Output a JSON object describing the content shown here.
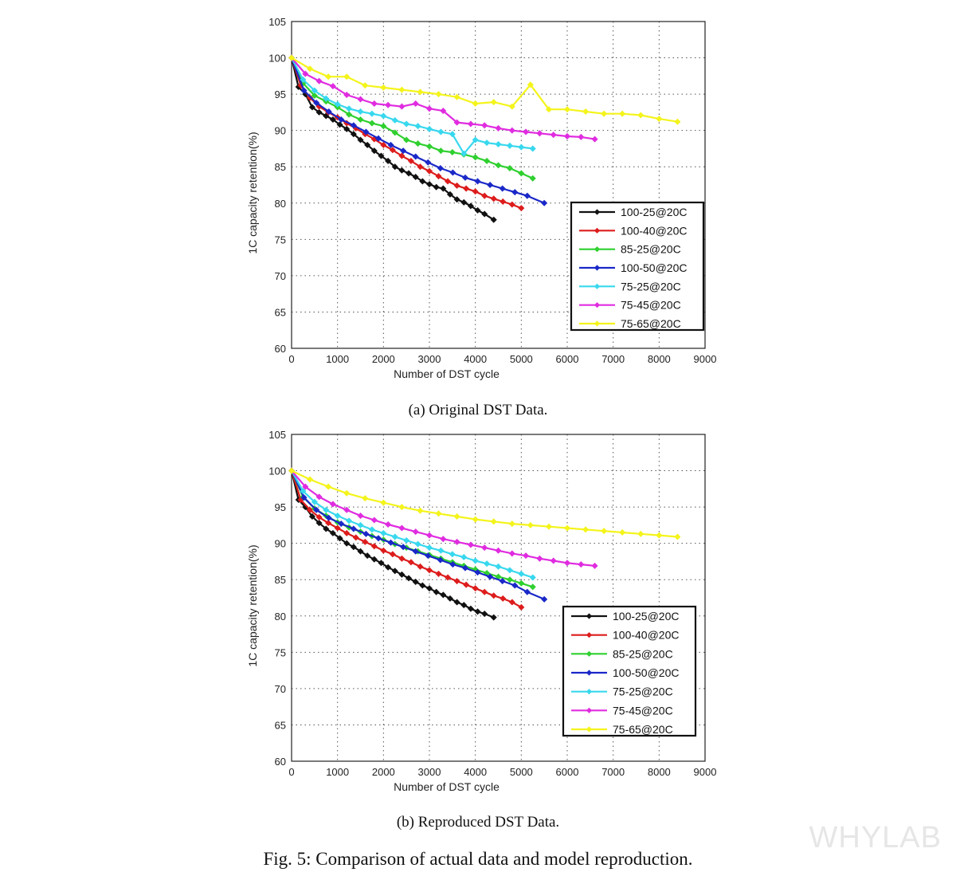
{
  "figure_caption": "Fig. 5: Comparison of actual data and model reproduction.",
  "watermark": "WHYLAB",
  "legend_labels": [
    "100-25@20C",
    "100-40@20C",
    "85-25@20C",
    "100-50@20C",
    "75-25@20C",
    "75-45@20C",
    "75-65@20C"
  ],
  "series_colors": [
    "#111111",
    "#dd1c1c",
    "#2fd02f",
    "#1a28c8",
    "#38d8ee",
    "#e02ce0",
    "#f4f41c"
  ],
  "chart_data": [
    {
      "type": "line",
      "caption": "(a) Original DST Data.",
      "xlabel": "Number of DST cycle",
      "ylabel": "1C capacity retention(%)",
      "xlim": [
        0,
        9000
      ],
      "ylim": [
        60,
        105
      ],
      "xticks": [
        "0",
        "1000",
        "2000",
        "3000",
        "4000",
        "5000",
        "6000",
        "7000",
        "8000",
        "9000"
      ],
      "yticks": [
        "60",
        "65",
        "70",
        "75",
        "80",
        "85",
        "90",
        "95",
        "100",
        "105"
      ],
      "grid": true,
      "legend_position": "lower-right",
      "series": [
        {
          "name": "100-25@20C",
          "x": [
            0,
            150,
            300,
            450,
            600,
            750,
            900,
            1050,
            1200,
            1350,
            1500,
            1650,
            1800,
            1950,
            2100,
            2250,
            2400,
            2550,
            2700,
            2850,
            3000,
            3150,
            3300,
            3450,
            3600,
            3750,
            3900,
            4050,
            4200,
            4400
          ],
          "y": [
            100,
            96,
            95,
            93.2,
            92.5,
            92,
            91.5,
            90.8,
            90.2,
            89.5,
            88.7,
            88,
            87.2,
            86.5,
            85.8,
            85,
            84.5,
            84.1,
            83.6,
            83,
            82.6,
            82.2,
            82,
            81.2,
            80.5,
            80.1,
            79.6,
            79,
            78.5,
            77.7
          ]
        },
        {
          "name": "100-40@20C",
          "x": [
            0,
            200,
            400,
            600,
            800,
            1000,
            1200,
            1400,
            1600,
            1800,
            2000,
            2200,
            2400,
            2600,
            2800,
            3000,
            3200,
            3400,
            3600,
            3800,
            4000,
            4200,
            4400,
            4600,
            4800,
            5000
          ],
          "y": [
            100,
            96.2,
            94.5,
            93.3,
            92.5,
            91.8,
            91,
            90.3,
            89.5,
            88.8,
            88,
            87.3,
            86.5,
            85.8,
            85,
            84.4,
            83.7,
            83,
            82.4,
            82,
            81.6,
            81,
            80.6,
            80.2,
            79.8,
            79.3
          ]
        },
        {
          "name": "85-25@20C",
          "x": [
            0,
            250,
            500,
            750,
            1000,
            1250,
            1500,
            1750,
            2000,
            2250,
            2500,
            2750,
            3000,
            3250,
            3500,
            3750,
            4000,
            4250,
            4500,
            4750,
            5000,
            5250
          ],
          "y": [
            100,
            96.5,
            94.8,
            94,
            93.2,
            92.2,
            91.5,
            91,
            90.6,
            89.7,
            88.7,
            88.2,
            87.8,
            87.2,
            87,
            86.7,
            86.3,
            85.8,
            85.2,
            84.8,
            84.1,
            83.4
          ]
        },
        {
          "name": "100-50@20C",
          "x": [
            0,
            270,
            540,
            810,
            1080,
            1350,
            1620,
            1890,
            2160,
            2430,
            2700,
            2970,
            3240,
            3510,
            3780,
            4050,
            4320,
            4590,
            4860,
            5130,
            5500
          ],
          "y": [
            100,
            95.5,
            93.8,
            92.6,
            91.5,
            90.7,
            89.8,
            88.9,
            88,
            87.2,
            86.4,
            85.6,
            84.8,
            84.2,
            83.5,
            83,
            82.5,
            82,
            81.5,
            81,
            80
          ]
        },
        {
          "name": "75-25@20C",
          "x": [
            0,
            250,
            500,
            750,
            1000,
            1250,
            1500,
            1750,
            2000,
            2250,
            2500,
            2750,
            3000,
            3250,
            3500,
            3750,
            4000,
            4250,
            4500,
            4750,
            5000,
            5250
          ],
          "y": [
            100,
            97,
            95.5,
            94.4,
            93.6,
            93,
            92.6,
            92.3,
            92,
            91.4,
            90.9,
            90.6,
            90.2,
            89.8,
            89.5,
            86.8,
            88.7,
            88.3,
            88.1,
            87.9,
            87.7,
            87.5
          ]
        },
        {
          "name": "75-45@20C",
          "x": [
            0,
            300,
            600,
            900,
            1200,
            1500,
            1800,
            2100,
            2400,
            2700,
            3000,
            3300,
            3600,
            3900,
            4200,
            4500,
            4800,
            5100,
            5400,
            5700,
            6000,
            6300,
            6600
          ],
          "y": [
            100,
            97.8,
            96.8,
            96.1,
            94.9,
            94.3,
            93.7,
            93.5,
            93.3,
            93.7,
            93,
            92.7,
            91.1,
            90.9,
            90.7,
            90.3,
            90,
            89.8,
            89.6,
            89.4,
            89.2,
            89.1,
            88.8
          ]
        },
        {
          "name": "75-65@20C",
          "x": [
            0,
            400,
            800,
            1200,
            1600,
            2000,
            2400,
            2800,
            3200,
            3600,
            4000,
            4400,
            4800,
            5200,
            5600,
            6000,
            6400,
            6800,
            7200,
            7600,
            8000,
            8400
          ],
          "y": [
            100,
            98.5,
            97.4,
            97.4,
            96.2,
            95.9,
            95.6,
            95.3,
            95,
            94.6,
            93.7,
            93.9,
            93.3,
            96.3,
            92.9,
            92.9,
            92.6,
            92.3,
            92.3,
            92.1,
            91.6,
            91.2
          ]
        }
      ]
    },
    {
      "type": "line",
      "caption": "(b) Reproduced DST Data.",
      "xlabel": "Number of DST cycle",
      "ylabel": "1C capacity retention(%)",
      "xlim": [
        0,
        9000
      ],
      "ylim": [
        60,
        105
      ],
      "xticks": [
        "0",
        "1000",
        "2000",
        "3000",
        "4000",
        "5000",
        "6000",
        "7000",
        "8000",
        "9000"
      ],
      "yticks": [
        "60",
        "65",
        "70",
        "75",
        "80",
        "85",
        "90",
        "95",
        "100",
        "105"
      ],
      "grid": true,
      "legend_position": "lower-right",
      "series": [
        {
          "name": "100-25@20C",
          "x": [
            0,
            150,
            300,
            450,
            600,
            750,
            900,
            1050,
            1200,
            1350,
            1500,
            1650,
            1800,
            1950,
            2100,
            2250,
            2400,
            2550,
            2700,
            2850,
            3000,
            3150,
            3300,
            3450,
            3600,
            3750,
            3900,
            4050,
            4200,
            4400
          ],
          "y": [
            100,
            96,
            95,
            93.7,
            92.8,
            92,
            91.4,
            90.7,
            90,
            89.5,
            88.9,
            88.3,
            87.8,
            87.3,
            86.7,
            86.2,
            85.7,
            85.2,
            84.7,
            84.2,
            83.8,
            83.3,
            82.9,
            82.4,
            81.9,
            81.5,
            81,
            80.6,
            80.3,
            79.8
          ]
        },
        {
          "name": "100-40@20C",
          "x": [
            0,
            200,
            400,
            600,
            800,
            1000,
            1200,
            1400,
            1600,
            1800,
            2000,
            2200,
            2400,
            2600,
            2800,
            3000,
            3200,
            3400,
            3600,
            3800,
            4000,
            4200,
            4400,
            4600,
            4800,
            5000
          ],
          "y": [
            100,
            96,
            94.6,
            93.6,
            92.8,
            92.1,
            91.4,
            90.8,
            90.2,
            89.6,
            89,
            88.5,
            87.9,
            87.4,
            86.8,
            86.3,
            85.8,
            85.3,
            84.8,
            84.3,
            83.8,
            83.3,
            82.8,
            82.4,
            81.9,
            81.2
          ]
        },
        {
          "name": "85-25@20C",
          "x": [
            0,
            250,
            500,
            750,
            1000,
            1250,
            1500,
            1750,
            2000,
            2250,
            2500,
            2750,
            3000,
            3250,
            3500,
            3750,
            4000,
            4250,
            4500,
            4750,
            5000,
            5250
          ],
          "y": [
            100,
            96.4,
            94.8,
            93.8,
            92.9,
            92.2,
            91.6,
            91,
            90.5,
            89.9,
            89.4,
            88.9,
            88.4,
            87.9,
            87.4,
            86.9,
            86.4,
            85.9,
            85.4,
            85,
            84.5,
            84
          ]
        },
        {
          "name": "100-50@20C",
          "x": [
            0,
            270,
            540,
            810,
            1080,
            1350,
            1620,
            1890,
            2160,
            2430,
            2700,
            2970,
            3240,
            3510,
            3780,
            4050,
            4320,
            4590,
            4860,
            5130,
            5500
          ],
          "y": [
            100,
            96.3,
            94.6,
            93.5,
            92.7,
            92,
            91.3,
            90.7,
            90.1,
            89.5,
            88.9,
            88.3,
            87.7,
            87.1,
            86.6,
            86,
            85.4,
            84.8,
            84.2,
            83.3,
            82.3
          ]
        },
        {
          "name": "75-25@20C",
          "x": [
            0,
            250,
            500,
            750,
            1000,
            1250,
            1500,
            1750,
            2000,
            2250,
            2500,
            2750,
            3000,
            3250,
            3500,
            3750,
            4000,
            4250,
            4500,
            4750,
            5000,
            5250
          ],
          "y": [
            100,
            97.2,
            95.7,
            94.6,
            93.8,
            93.1,
            92.5,
            91.9,
            91.4,
            90.9,
            90.4,
            89.9,
            89.4,
            89,
            88.5,
            88.1,
            87.6,
            87.2,
            86.8,
            86.3,
            85.8,
            85.3
          ]
        },
        {
          "name": "75-45@20C",
          "x": [
            0,
            300,
            600,
            900,
            1200,
            1500,
            1800,
            2100,
            2400,
            2700,
            3000,
            3300,
            3600,
            3900,
            4200,
            4500,
            4800,
            5100,
            5400,
            5700,
            6000,
            6300,
            6600
          ],
          "y": [
            100,
            97.8,
            96.4,
            95.4,
            94.6,
            93.8,
            93.2,
            92.6,
            92.1,
            91.6,
            91.1,
            90.6,
            90.2,
            89.8,
            89.4,
            89,
            88.6,
            88.3,
            87.9,
            87.6,
            87.3,
            87.1,
            86.9
          ]
        },
        {
          "name": "75-65@20C",
          "x": [
            0,
            400,
            800,
            1200,
            1600,
            2000,
            2400,
            2800,
            3200,
            3600,
            4000,
            4400,
            4800,
            5200,
            5600,
            6000,
            6400,
            6800,
            7200,
            7600,
            8000,
            8400
          ],
          "y": [
            100,
            98.8,
            97.8,
            96.9,
            96.2,
            95.6,
            95,
            94.5,
            94.1,
            93.7,
            93.3,
            93,
            92.7,
            92.5,
            92.3,
            92.1,
            91.9,
            91.7,
            91.5,
            91.3,
            91.1,
            90.9
          ]
        }
      ]
    }
  ]
}
